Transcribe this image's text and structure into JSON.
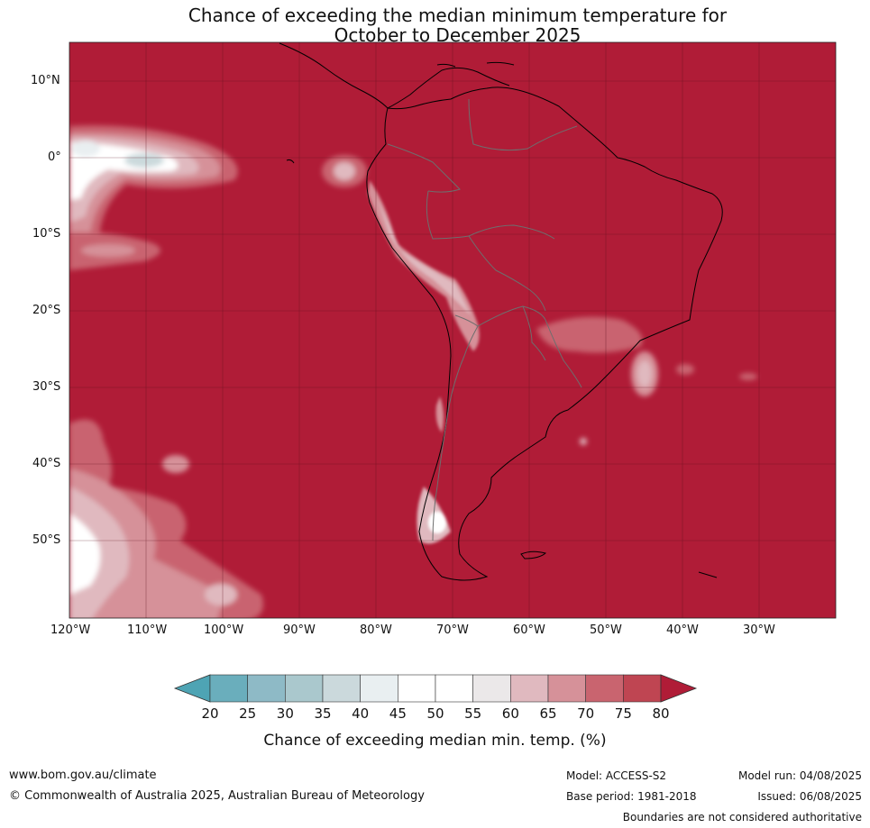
{
  "title": {
    "line1": "Chance of exceeding the median minimum temperature for",
    "line2": "October to December 2025"
  },
  "map": {
    "background_color": "#b01c37",
    "lat_labels": [
      "10°N",
      "0°",
      "10°S",
      "20°S",
      "30°S",
      "40°S",
      "50°S"
    ],
    "lon_labels": [
      "120°W",
      "110°W",
      "100°W",
      "90°W",
      "80°W",
      "70°W",
      "60°W",
      "50°W",
      "40°W",
      "30°W"
    ]
  },
  "colorbar": {
    "ticks": [
      "20",
      "25",
      "30",
      "35",
      "40",
      "45",
      "50",
      "55",
      "60",
      "65",
      "70",
      "75",
      "80"
    ],
    "colors": [
      "#6aaebc",
      "#8ebac6",
      "#aac8cd",
      "#cbd9dc",
      "#e9eff1",
      "#ffffff",
      "#ffffff",
      "#ebe8e9",
      "#e0b9bf",
      "#d69199",
      "#c9646f",
      "#bf4552"
    ],
    "low_extend_color": "#4ea4b4",
    "high_extend_color": "#b01c37",
    "label": "Chance of exceeding median min. temp. (%)"
  },
  "footer": {
    "website": "www.bom.gov.au/climate",
    "copyright": "© Commonwealth of Australia 2025, Australian Bureau of Meteorology",
    "model": "Model: ACCESS-S2",
    "base_period": "Base period: 1981-2018",
    "model_run": "Model run: 04/08/2025",
    "issued": "Issued: 06/08/2025",
    "disclaimer": "Boundaries are not considered authoritative"
  }
}
